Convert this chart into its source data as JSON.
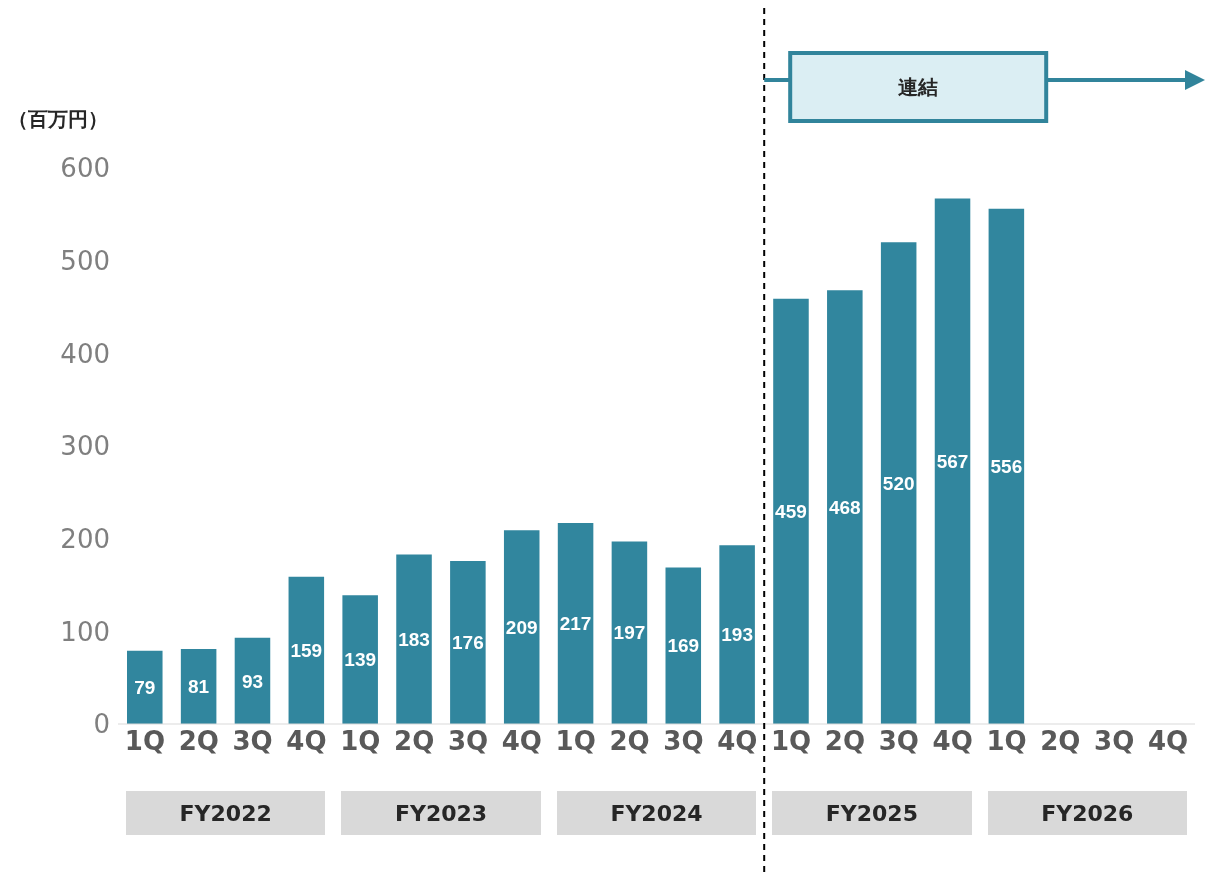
{
  "chart_data": {
    "type": "bar",
    "ylabel": "（百万円）",
    "categories": [
      "1Q",
      "2Q",
      "3Q",
      "4Q",
      "1Q",
      "2Q",
      "3Q",
      "4Q",
      "1Q",
      "2Q",
      "3Q",
      "4Q",
      "1Q",
      "2Q",
      "3Q",
      "4Q",
      "1Q",
      "2Q",
      "3Q",
      "4Q"
    ],
    "values": [
      79,
      81,
      93,
      159,
      139,
      183,
      176,
      209,
      217,
      197,
      169,
      193,
      459,
      468,
      520,
      567,
      556,
      null,
      null,
      null
    ],
    "color": "#31869e",
    "ylim": [
      0,
      600
    ],
    "yticks": [
      0,
      100,
      200,
      300,
      400,
      500,
      600
    ],
    "data_labels": true,
    "annotations": [
      "連結",
      "FY2022",
      "FY2023",
      "FY2024",
      "FY2025",
      "FY2026"
    ]
  }
}
